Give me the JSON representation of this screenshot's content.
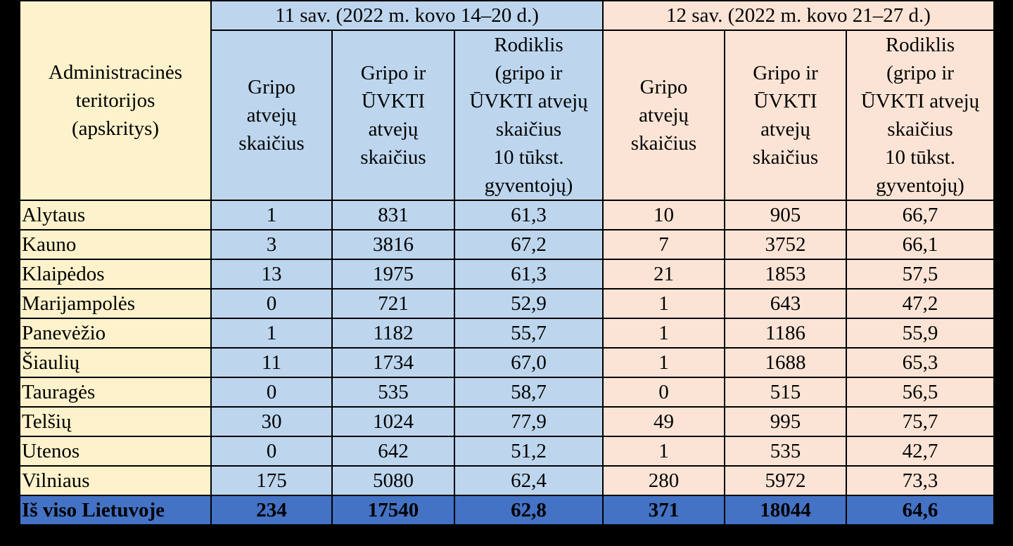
{
  "table": {
    "header": {
      "admin": [
        "Administracinės",
        "teritorijos",
        "(apskritys)"
      ],
      "week11": "11 sav. (2022 m. kovo 14–20 d.)",
      "week12": "12 sav. (2022 m. kovo 21–27 d.)",
      "sub": {
        "flu_cases": [
          "Gripo",
          "atvejų",
          "skaičius"
        ],
        "flu_ari_cases": [
          "Gripo ir",
          "ŪVKTI",
          "atvejų",
          "skaičius"
        ],
        "rate": [
          "Rodiklis",
          "(gripo ir",
          "ŪVKTI atvejų",
          "skaičius",
          "10 tūkst.",
          "gyventojų)"
        ]
      }
    },
    "colors": {
      "week11": "#bdd6ee",
      "week12": "#fbe4d5",
      "admin": "#fdf2cb",
      "total": "#4472c4"
    },
    "rows": [
      {
        "name": "Alytaus",
        "w11_flu": "1",
        "w11_total": "831",
        "w11_rate": "61,3",
        "w12_flu": "10",
        "w12_total": "905",
        "w12_rate": "66,7"
      },
      {
        "name": "Kauno",
        "w11_flu": "3",
        "w11_total": "3816",
        "w11_rate": "67,2",
        "w12_flu": "7",
        "w12_total": "3752",
        "w12_rate": "66,1"
      },
      {
        "name": "Klaipėdos",
        "w11_flu": "13",
        "w11_total": "1975",
        "w11_rate": "61,3",
        "w12_flu": "21",
        "w12_total": "1853",
        "w12_rate": "57,5"
      },
      {
        "name": "Marijampolės",
        "w11_flu": "0",
        "w11_total": "721",
        "w11_rate": "52,9",
        "w12_flu": "1",
        "w12_total": "643",
        "w12_rate": "47,2"
      },
      {
        "name": "Panevėžio",
        "w11_flu": "1",
        "w11_total": "1182",
        "w11_rate": "55,7",
        "w12_flu": "1",
        "w12_total": "1186",
        "w12_rate": "55,9"
      },
      {
        "name": "Šiaulių",
        "w11_flu": "11",
        "w11_total": "1734",
        "w11_rate": "67,0",
        "w12_flu": "1",
        "w12_total": "1688",
        "w12_rate": "65,3"
      },
      {
        "name": "Tauragės",
        "w11_flu": "0",
        "w11_total": "535",
        "w11_rate": "58,7",
        "w12_flu": "0",
        "w12_total": "515",
        "w12_rate": "56,5"
      },
      {
        "name": "Telšių",
        "w11_flu": "30",
        "w11_total": "1024",
        "w11_rate": "77,9",
        "w12_flu": "49",
        "w12_total": "995",
        "w12_rate": "75,7"
      },
      {
        "name": "Utenos",
        "w11_flu": "0",
        "w11_total": "642",
        "w11_rate": "51,2",
        "w12_flu": "1",
        "w12_total": "535",
        "w12_rate": "42,7"
      },
      {
        "name": "Vilniaus",
        "w11_flu": "175",
        "w11_total": "5080",
        "w11_rate": "62,4",
        "w12_flu": "280",
        "w12_total": "5972",
        "w12_rate": "73,3"
      }
    ],
    "total": {
      "name": "Iš viso Lietuvoje",
      "w11_flu": "234",
      "w11_total": "17540",
      "w11_rate": "62,8",
      "w12_flu": "371",
      "w12_total": "18044",
      "w12_rate": "64,6"
    }
  }
}
